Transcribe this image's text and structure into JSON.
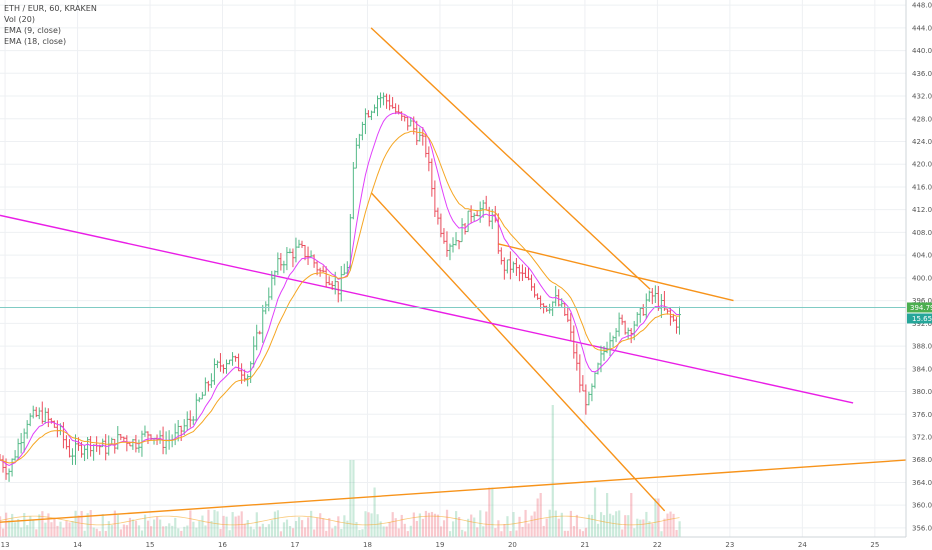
{
  "legend": {
    "symbol": "ETH / EUR, 60, KRAKEN",
    "volume": "Vol (20)",
    "ema_fast": "EMA (9, close)",
    "ema_slow": "EMA (18, close)"
  },
  "colors": {
    "up": "#53b987",
    "down": "#eb4d5c",
    "ema_fast": "#e040fb",
    "ema_slow": "#f5a623",
    "trendline_orange": "#f7931a",
    "trendline_magenta": "#e91ee6",
    "price_line": "#80cbc4",
    "badge_price": "#4caf50",
    "badge_volume": "#26a69a"
  },
  "chart_data": {
    "type": "candlestick",
    "symbol": "ETH / EUR",
    "interval": "60",
    "exchange": "KRAKEN",
    "y_ticks": [
      "356.00",
      "360.00",
      "364.00",
      "368.00",
      "372.00",
      "376.00",
      "380.00",
      "384.00",
      "388.00",
      "392.00",
      "396.00",
      "400.00",
      "404.00",
      "408.00",
      "412.00",
      "416.00",
      "420.00",
      "424.00",
      "428.00",
      "432.00",
      "436.00",
      "440.00",
      "444.00",
      "448.00"
    ],
    "x_ticks": [
      {
        "day": 13,
        "label": "13"
      },
      {
        "day": 14,
        "label": "14"
      },
      {
        "day": 15,
        "label": "15"
      },
      {
        "day": 16,
        "label": "16"
      },
      {
        "day": 17,
        "label": "17"
      },
      {
        "day": 18,
        "label": "18"
      },
      {
        "day": 19,
        "label": "19"
      },
      {
        "day": 20,
        "label": "20"
      },
      {
        "day": 21,
        "label": "21"
      },
      {
        "day": 22,
        "label": "22"
      },
      {
        "day": 23,
        "label": "23"
      },
      {
        "day": 24,
        "label": "24"
      },
      {
        "day": 25,
        "label": "25"
      }
    ],
    "x_range": [
      12.93,
      25.43
    ],
    "y_range": [
      354.4,
      448.9
    ],
    "last_price": "394.79",
    "last_volume": "15.65",
    "price_anchors": [
      [
        12.93,
        368
      ],
      [
        13.05,
        366
      ],
      [
        13.3,
        375
      ],
      [
        13.5,
        376
      ],
      [
        13.75,
        373
      ],
      [
        13.9,
        369
      ],
      [
        14.15,
        371
      ],
      [
        14.4,
        370
      ],
      [
        14.6,
        372
      ],
      [
        14.8,
        371
      ],
      [
        15.0,
        373
      ],
      [
        15.15,
        371
      ],
      [
        15.35,
        372
      ],
      [
        15.55,
        375
      ],
      [
        15.75,
        380
      ],
      [
        15.9,
        384
      ],
      [
        16.1,
        386
      ],
      [
        16.25,
        384
      ],
      [
        16.35,
        383
      ],
      [
        16.45,
        388
      ],
      [
        16.6,
        396
      ],
      [
        16.75,
        402
      ],
      [
        16.9,
        404
      ],
      [
        17.05,
        405
      ],
      [
        17.2,
        404
      ],
      [
        17.35,
        401
      ],
      [
        17.5,
        400
      ],
      [
        17.6,
        398
      ],
      [
        17.72,
        402
      ],
      [
        17.82,
        421
      ],
      [
        17.92,
        428
      ],
      [
        18.05,
        430
      ],
      [
        18.15,
        432
      ],
      [
        18.3,
        431
      ],
      [
        18.45,
        428
      ],
      [
        18.6,
        427
      ],
      [
        18.8,
        423
      ],
      [
        18.95,
        411
      ],
      [
        19.1,
        406
      ],
      [
        19.25,
        407
      ],
      [
        19.45,
        412
      ],
      [
        19.6,
        412
      ],
      [
        19.75,
        410
      ],
      [
        19.85,
        402
      ],
      [
        20.0,
        402
      ],
      [
        20.15,
        400
      ],
      [
        20.3,
        398
      ],
      [
        20.45,
        395
      ],
      [
        20.6,
        396
      ],
      [
        20.75,
        393
      ],
      [
        20.85,
        387
      ],
      [
        20.95,
        380
      ],
      [
        21.05,
        378
      ],
      [
        21.2,
        385
      ],
      [
        21.35,
        390
      ],
      [
        21.45,
        392
      ],
      [
        21.6,
        391
      ],
      [
        21.75,
        393
      ],
      [
        21.85,
        396
      ],
      [
        21.95,
        397
      ],
      [
        22.1,
        394
      ],
      [
        22.25,
        392
      ],
      [
        22.3,
        393
      ]
    ],
    "volume_spikes": [
      [
        17.78,
        14
      ],
      [
        18.1,
        9
      ],
      [
        19.7,
        9
      ],
      [
        20.35,
        7
      ],
      [
        20.4,
        8
      ],
      [
        20.55,
        24
      ],
      [
        21.15,
        9
      ],
      [
        21.3,
        8
      ],
      [
        21.65,
        8
      ],
      [
        22.0,
        7
      ]
    ],
    "trendlines": [
      {
        "name": "descending-channel-upper",
        "color": "orange",
        "points": [
          [
            18.05,
            444
          ],
          [
            21.9,
            398
          ]
        ]
      },
      {
        "name": "descending-channel-lower",
        "color": "orange",
        "points": [
          [
            18.05,
            415
          ],
          [
            22.1,
            359
          ]
        ]
      },
      {
        "name": "resistance-line",
        "color": "orange",
        "points": [
          [
            19.8,
            406
          ],
          [
            23.05,
            396
          ]
        ]
      },
      {
        "name": "long-support-line",
        "color": "orange",
        "points": [
          [
            12.93,
            357
          ],
          [
            25.5,
            368
          ]
        ]
      },
      {
        "name": "long-falling-line",
        "color": "magenta",
        "points": [
          [
            12.93,
            411
          ],
          [
            24.7,
            378
          ]
        ]
      }
    ]
  }
}
